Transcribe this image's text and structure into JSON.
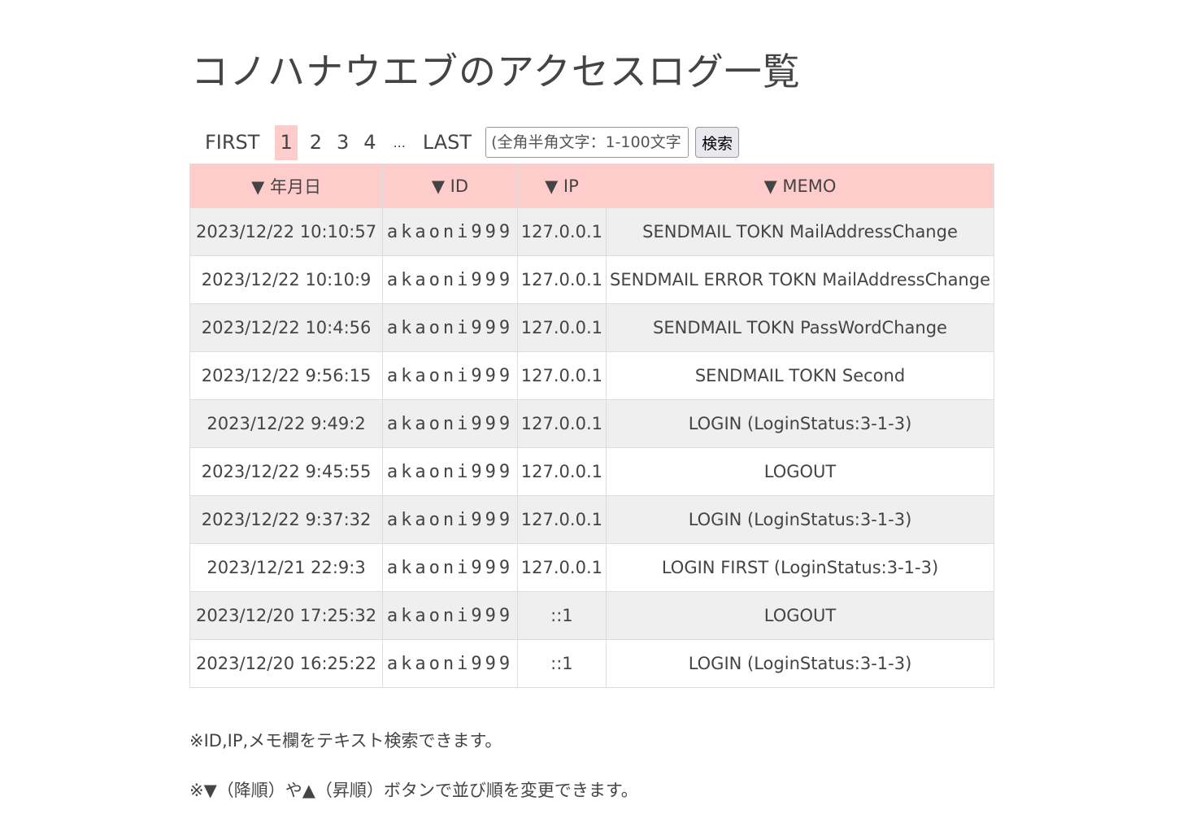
{
  "page_title": "コノハナウエブのアクセスログ一覧",
  "pager": {
    "first": "FIRST",
    "pages": [
      "1",
      "2",
      "3",
      "4"
    ],
    "current": "1",
    "ellipsis": "...",
    "last": "LAST"
  },
  "search": {
    "placeholder": "(全角半角文字：1-100文字",
    "button": "検索"
  },
  "table": {
    "headers": [
      "▼ 年月日",
      "▼ ID",
      "▼ IP",
      "▼ MEMO"
    ],
    "rows": [
      [
        "2023/12/22 10:10:57",
        "akaoni999",
        "127.0.0.1",
        "SENDMAIL TOKN MailAddressChange"
      ],
      [
        "2023/12/22 10:10:9",
        "akaoni999",
        "127.0.0.1",
        "SENDMAIL ERROR TOKN MailAddressChange"
      ],
      [
        "2023/12/22 10:4:56",
        "akaoni999",
        "127.0.0.1",
        "SENDMAIL TOKN PassWordChange"
      ],
      [
        "2023/12/22 9:56:15",
        "akaoni999",
        "127.0.0.1",
        "SENDMAIL TOKN Second"
      ],
      [
        "2023/12/22 9:49:2",
        "akaoni999",
        "127.0.0.1",
        "LOGIN (LoginStatus:3-1-3)"
      ],
      [
        "2023/12/22 9:45:55",
        "akaoni999",
        "127.0.0.1",
        "LOGOUT"
      ],
      [
        "2023/12/22 9:37:32",
        "akaoni999",
        "127.0.0.1",
        "LOGIN (LoginStatus:3-1-3)"
      ],
      [
        "2023/12/21 22:9:3",
        "akaoni999",
        "127.0.0.1",
        "LOGIN FIRST (LoginStatus:3-1-3)"
      ],
      [
        "2023/12/20 17:25:32",
        "akaoni999",
        "::1",
        "LOGOUT"
      ],
      [
        "2023/12/20 16:25:22",
        "akaoni999",
        "::1",
        "LOGIN (LoginStatus:3-1-3)"
      ]
    ]
  },
  "notes": [
    "※ID,IP,メモ欄をテキスト検索できます。",
    "※▼（降順）や▲（昇順）ボタンで並び順を変更できます。"
  ],
  "colors": {
    "header_bg": "#ffcccc",
    "current_page_bg": "#ffcccc",
    "odd_row_bg": "#efefef"
  }
}
